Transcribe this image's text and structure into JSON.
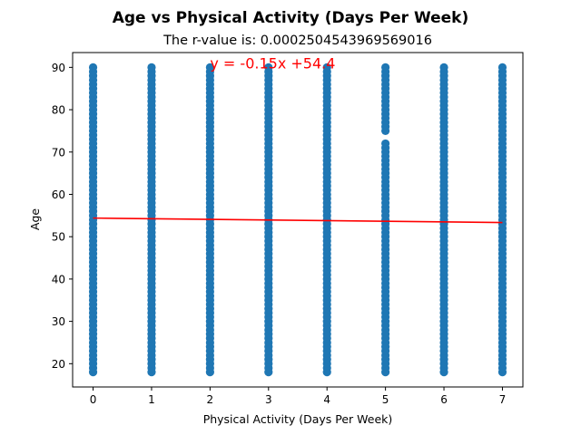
{
  "chart_data": {
    "type": "scatter",
    "title": "Age vs Physical Activity (Days Per Week)",
    "subtitle": "The r-value is: 0.00025045439695690​16",
    "xlabel": "Physical Activity (Days Per Week)",
    "ylabel": "Age",
    "xlim": [
      -0.35,
      7.35
    ],
    "ylim": [
      14.5,
      93.5
    ],
    "xticks": [
      0,
      1,
      2,
      3,
      4,
      5,
      6,
      7
    ],
    "yticks": [
      20,
      30,
      40,
      50,
      60,
      70,
      80,
      90
    ],
    "grid": false,
    "point_color": "#1f77b4",
    "line_color": "#ff0000",
    "points": [
      {
        "x": 0,
        "y_ranges": [
          [
            18,
            90
          ]
        ]
      },
      {
        "x": 1,
        "y_ranges": [
          [
            18,
            90
          ]
        ]
      },
      {
        "x": 2,
        "y_ranges": [
          [
            18,
            90
          ]
        ]
      },
      {
        "x": 3,
        "y_ranges": [
          [
            18,
            90
          ]
        ]
      },
      {
        "x": 4,
        "y_ranges": [
          [
            18,
            90
          ]
        ]
      },
      {
        "x": 5,
        "y_ranges": [
          [
            18,
            72
          ],
          [
            75,
            90
          ]
        ]
      },
      {
        "x": 6,
        "y_ranges": [
          [
            18,
            90
          ]
        ]
      },
      {
        "x": 7,
        "y_ranges": [
          [
            18,
            90
          ]
        ]
      }
    ],
    "regression": {
      "slope": -0.15,
      "intercept": 54.4,
      "x_range": [
        0,
        7
      ]
    },
    "annotation": {
      "text": "y = -0.15x +54.4",
      "x": 2,
      "y": 90
    }
  }
}
